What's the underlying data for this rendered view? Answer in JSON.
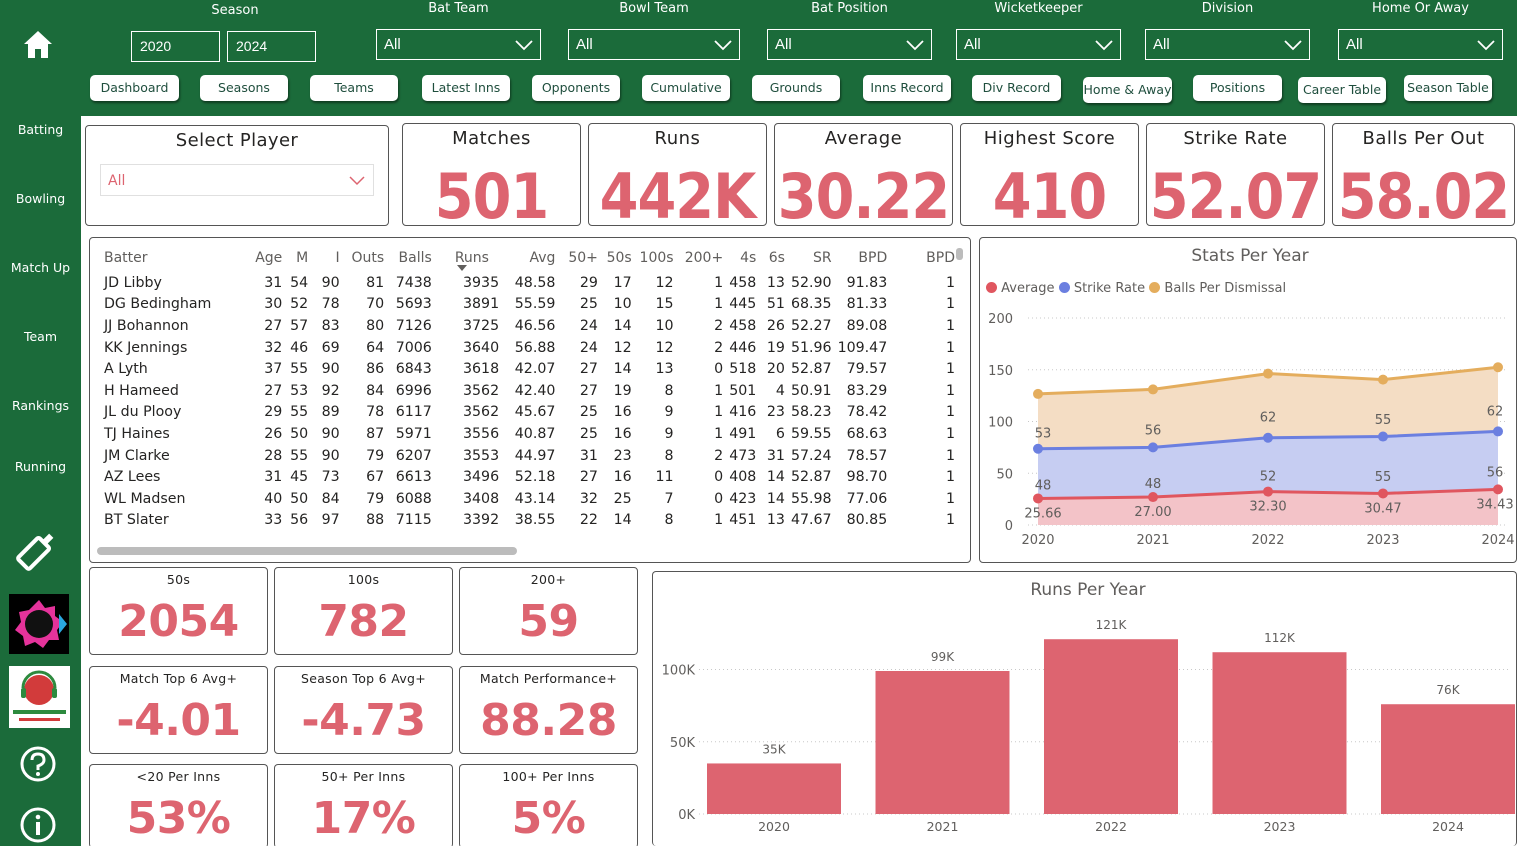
{
  "filters": {
    "season": {
      "label": "Season",
      "from": "2020",
      "to": "2024"
    },
    "dropdowns": [
      {
        "label": "Bat Team",
        "value": "All"
      },
      {
        "label": "Bowl Team",
        "value": "All"
      },
      {
        "label": "Bat Position",
        "value": "All"
      },
      {
        "label": "Wicketkeeper",
        "value": "All"
      },
      {
        "label": "Division",
        "value": "All"
      },
      {
        "label": "Home Or Away",
        "value": "All"
      }
    ]
  },
  "nav": [
    "Dashboard",
    "Seasons",
    "Teams",
    "Latest Inns",
    "Opponents",
    "Cumulative",
    "Grounds",
    "Inns Record",
    "Div Record",
    "Home & Away",
    "Positions",
    "Career Table",
    "Season Table"
  ],
  "sidebar": {
    "items": [
      "Batting",
      "Bowling",
      "Match Up",
      "Team",
      "Rankings",
      "Running"
    ]
  },
  "colors": {
    "green": "#1b6b3a",
    "accent": "#dd6470",
    "average": "#e0565f",
    "strike_rate": "#6b7fe0",
    "balls_per_dismissal": "#e4ad5d"
  },
  "select_player": {
    "title": "Select Player",
    "value": "All"
  },
  "kpis": [
    {
      "title": "Matches",
      "value": "501"
    },
    {
      "title": "Runs",
      "value": "442K"
    },
    {
      "title": "Average",
      "value": "30.22"
    },
    {
      "title": "Highest Score",
      "value": "410"
    },
    {
      "title": "Strike Rate",
      "value": "52.07"
    },
    {
      "title": "Balls Per Out",
      "value": "58.02"
    }
  ],
  "table": {
    "columns": [
      "Batter",
      "Age",
      "M",
      "I",
      "Outs",
      "Balls",
      "Runs",
      "Avg",
      "50+",
      "50s",
      "100s",
      "200+",
      "4s",
      "6s",
      "SR",
      "BPD",
      "BPD"
    ],
    "rows": [
      [
        "JD Libby",
        "31",
        "54",
        "90",
        "81",
        "7438",
        "3935",
        "48.58",
        "29",
        "17",
        "12",
        "1",
        "458",
        "13",
        "52.90",
        "91.83",
        "1"
      ],
      [
        "DG Bedingham",
        "30",
        "52",
        "78",
        "70",
        "5693",
        "3891",
        "55.59",
        "25",
        "10",
        "15",
        "1",
        "445",
        "51",
        "68.35",
        "81.33",
        "1"
      ],
      [
        "JJ Bohannon",
        "27",
        "57",
        "83",
        "80",
        "7126",
        "3725",
        "46.56",
        "24",
        "14",
        "10",
        "2",
        "458",
        "26",
        "52.27",
        "89.08",
        "1"
      ],
      [
        "KK Jennings",
        "32",
        "46",
        "69",
        "64",
        "7006",
        "3640",
        "56.88",
        "24",
        "12",
        "12",
        "2",
        "446",
        "19",
        "51.96",
        "109.47",
        "1"
      ],
      [
        "A Lyth",
        "37",
        "55",
        "90",
        "86",
        "6843",
        "3618",
        "42.07",
        "27",
        "14",
        "13",
        "0",
        "518",
        "20",
        "52.87",
        "79.57",
        "1"
      ],
      [
        "H Hameed",
        "27",
        "53",
        "92",
        "84",
        "6996",
        "3562",
        "42.40",
        "27",
        "19",
        "8",
        "1",
        "501",
        "4",
        "50.91",
        "83.29",
        "1"
      ],
      [
        "JL du Plooy",
        "29",
        "55",
        "89",
        "78",
        "6117",
        "3562",
        "45.67",
        "25",
        "16",
        "9",
        "1",
        "416",
        "23",
        "58.23",
        "78.42",
        "1"
      ],
      [
        "TJ Haines",
        "26",
        "50",
        "90",
        "87",
        "5971",
        "3556",
        "40.87",
        "25",
        "16",
        "9",
        "1",
        "491",
        "6",
        "59.55",
        "68.63",
        "1"
      ],
      [
        "JM Clarke",
        "28",
        "55",
        "90",
        "79",
        "6207",
        "3553",
        "44.97",
        "31",
        "23",
        "8",
        "2",
        "473",
        "31",
        "57.24",
        "78.57",
        "1"
      ],
      [
        "AZ Lees",
        "31",
        "45",
        "73",
        "67",
        "6613",
        "3496",
        "52.18",
        "27",
        "16",
        "11",
        "0",
        "408",
        "14",
        "52.87",
        "98.70",
        "1"
      ],
      [
        "WL Madsen",
        "40",
        "50",
        "84",
        "79",
        "6088",
        "3408",
        "43.14",
        "32",
        "25",
        "7",
        "0",
        "423",
        "14",
        "55.98",
        "77.06",
        "1"
      ],
      [
        "BT Slater",
        "33",
        "56",
        "97",
        "88",
        "7115",
        "3392",
        "38.55",
        "22",
        "14",
        "8",
        "1",
        "451",
        "13",
        "47.67",
        "80.85",
        "1"
      ]
    ]
  },
  "small_kpis": [
    {
      "title": "50s",
      "value": "2054"
    },
    {
      "title": "100s",
      "value": "782"
    },
    {
      "title": "200+",
      "value": "59"
    },
    {
      "title": "Match Top 6 Avg+",
      "value": "-4.01"
    },
    {
      "title": "Season Top 6 Avg+",
      "value": "-4.73"
    },
    {
      "title": "Match Performance+",
      "value": "88.28"
    },
    {
      "title": "<20 Per Inns",
      "value": "53%"
    },
    {
      "title": "50+ Per Inns",
      "value": "17%"
    },
    {
      "title": "100+ Per Inns",
      "value": "5%"
    }
  ],
  "chart_data": [
    {
      "type": "area",
      "title": "Stats Per Year",
      "x": [
        "2020",
        "2021",
        "2022",
        "2023",
        "2024"
      ],
      "ylim": [
        0,
        200
      ],
      "yticks": [
        "0",
        "50",
        "100",
        "150",
        "200"
      ],
      "legend": "top-left",
      "series": [
        {
          "name": "Average",
          "values": [
            25.66,
            27.0,
            32.3,
            30.47,
            34.43
          ],
          "labels": [
            "25.66",
            "27.00",
            "32.30",
            "30.47",
            "34.43"
          ]
        },
        {
          "name": "Strike Rate",
          "values": [
            48,
            48,
            52,
            55,
            56
          ],
          "labels": [
            "48",
            "48",
            "52",
            "55",
            "56"
          ]
        },
        {
          "name": "Balls Per Dismissal",
          "values": [
            53,
            56,
            62,
            55,
            62
          ],
          "labels": [
            "53",
            "56",
            "62",
            "55",
            "62"
          ]
        }
      ]
    },
    {
      "type": "bar",
      "title": "Runs Per Year",
      "categories": [
        "2020",
        "2021",
        "2022",
        "2023",
        "2024"
      ],
      "values": [
        35000,
        99000,
        121000,
        112000,
        76000
      ],
      "labels": [
        "35K",
        "99K",
        "121K",
        "112K",
        "76K"
      ],
      "ylim": [
        0,
        135000
      ],
      "yticks": [
        "0K",
        "50K",
        "100K"
      ]
    }
  ]
}
